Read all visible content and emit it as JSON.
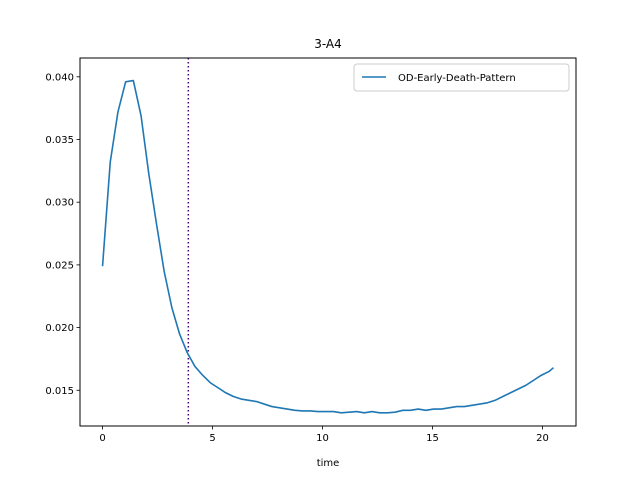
{
  "chart_data": {
    "type": "line",
    "title": "3-A4",
    "xlabel": "time",
    "ylabel": "",
    "xlim": [
      -1.025,
      21.525
    ],
    "ylim": [
      0.01215,
      0.0415
    ],
    "xticks": [
      0,
      5,
      10,
      15,
      20
    ],
    "yticks": [
      0.015,
      0.02,
      0.025,
      0.03,
      0.035,
      0.04
    ],
    "xtick_labels": [
      "0",
      "5",
      "10",
      "15",
      "20"
    ],
    "ytick_labels": [
      "0.015",
      "0.020",
      "0.025",
      "0.030",
      "0.035",
      "0.040"
    ],
    "grid": false,
    "legend_position": "top-right",
    "vline": {
      "x": 3.9,
      "color": "#4b0082",
      "style": "dotted"
    },
    "series": [
      {
        "name": "OD-Early-Death-Pattern",
        "color": "#1f77b4",
        "x": [
          0.0,
          0.35,
          0.7,
          1.05,
          1.4,
          1.75,
          2.1,
          2.45,
          2.8,
          3.15,
          3.5,
          3.85,
          4.2,
          4.55,
          4.9,
          5.25,
          5.6,
          5.95,
          6.3,
          6.65,
          7.0,
          7.35,
          7.7,
          8.05,
          8.4,
          8.75,
          9.1,
          9.45,
          9.8,
          10.15,
          10.5,
          10.85,
          11.2,
          11.55,
          11.9,
          12.25,
          12.6,
          12.95,
          13.3,
          13.65,
          14.0,
          14.35,
          14.7,
          15.05,
          15.4,
          15.75,
          16.1,
          16.45,
          16.8,
          17.15,
          17.5,
          17.85,
          18.2,
          18.55,
          18.9,
          19.25,
          19.6,
          19.95,
          20.3,
          20.5
        ],
        "y": [
          0.0249,
          0.0332,
          0.0372,
          0.0396,
          0.0397,
          0.0369,
          0.0323,
          0.0283,
          0.0245,
          0.0216,
          0.0195,
          0.018,
          0.0169,
          0.0162,
          0.0156,
          0.0152,
          0.0148,
          0.0145,
          0.0143,
          0.0142,
          0.0141,
          0.0139,
          0.0137,
          0.0136,
          0.0135,
          0.0134,
          0.01335,
          0.01335,
          0.0133,
          0.0133,
          0.0133,
          0.0132,
          0.01325,
          0.0133,
          0.0132,
          0.0133,
          0.0132,
          0.0132,
          0.01325,
          0.0134,
          0.0134,
          0.0135,
          0.0134,
          0.0135,
          0.0135,
          0.0136,
          0.0137,
          0.0137,
          0.0138,
          0.0139,
          0.014,
          0.0142,
          0.0145,
          0.0148,
          0.0151,
          0.0154,
          0.0158,
          0.0162,
          0.0165,
          0.0168
        ]
      }
    ]
  }
}
